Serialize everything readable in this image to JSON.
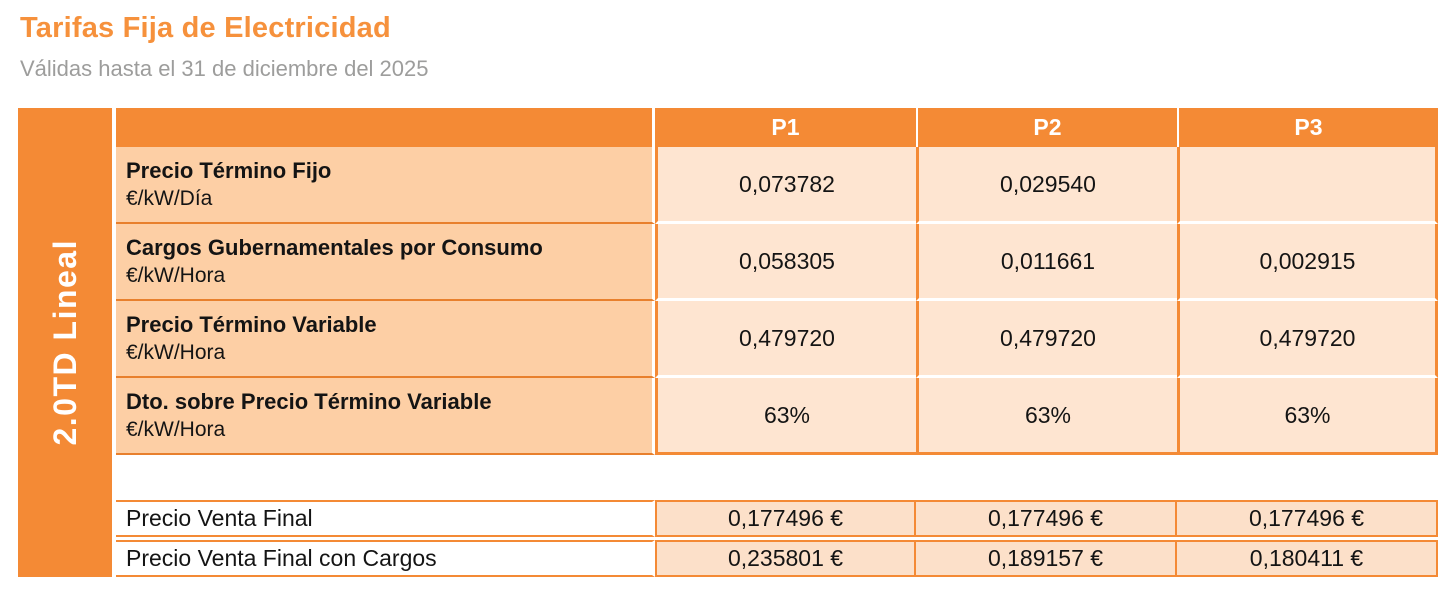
{
  "page": {
    "title": "Tarifas Fija de Electricidad",
    "subtitle": "Válidas hasta el 31 de diciembre del 2025"
  },
  "colors": {
    "accent_orange": "#F48A35",
    "title_orange": "#F6913C",
    "subtitle_gray": "#9D9D9C",
    "label_cell_bg": "#FDCFA5",
    "value_cell_bg": "#FEE5D1",
    "final_value_bg": "#FCE0C9",
    "label_separator": "#E8802D",
    "text": "#141414"
  },
  "table": {
    "group_label": "2.0TD Lineal",
    "columns": [
      "P1",
      "P2",
      "P3"
    ],
    "rows": [
      {
        "label": "Precio Término Fijo",
        "unit": "€/kW/Día",
        "values": [
          "0,073782",
          "0,029540",
          ""
        ]
      },
      {
        "label": "Cargos Gubernamentales por Consumo",
        "unit": "€/kW/Hora",
        "values": [
          "0,058305",
          "0,011661",
          "0,002915"
        ]
      },
      {
        "label": "Precio Término Variable",
        "unit": "€/kW/Hora",
        "values": [
          "0,479720",
          "0,479720",
          "0,479720"
        ]
      },
      {
        "label": "Dto. sobre Precio Término Variable",
        "unit": "€/kW/Hora",
        "values": [
          "63%",
          "63%",
          "63%"
        ]
      }
    ],
    "final_rows": [
      {
        "label": "Precio Venta Final",
        "values": [
          "0,177496 €",
          "0,177496 €",
          "0,177496 €"
        ]
      },
      {
        "label": "Precio Venta Final con Cargos",
        "values": [
          "0,235801 €",
          "0,189157 €",
          "0,180411 €"
        ]
      }
    ]
  }
}
